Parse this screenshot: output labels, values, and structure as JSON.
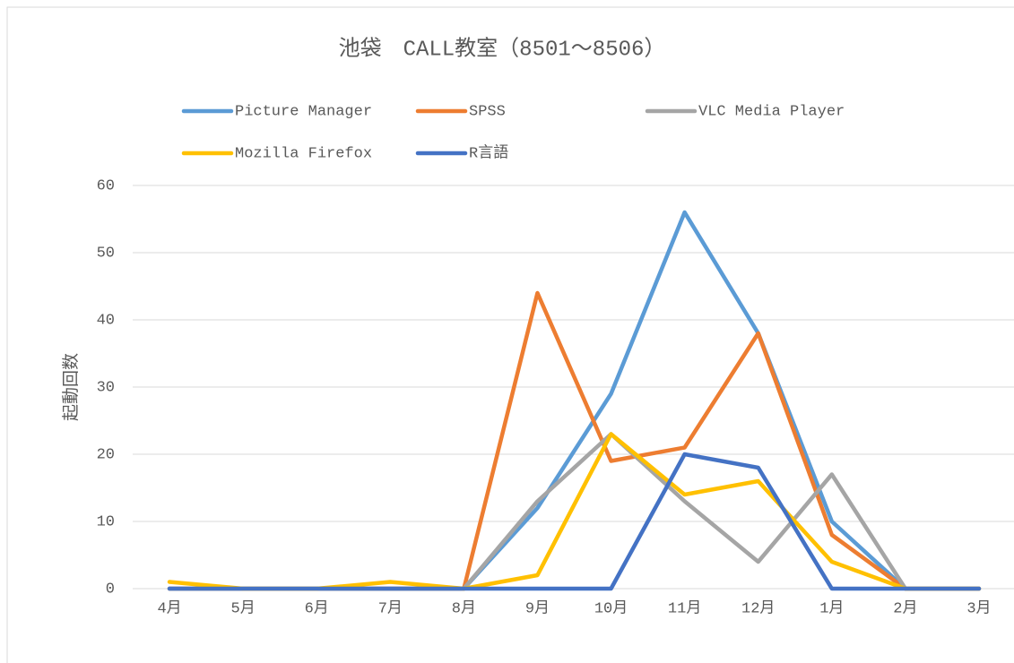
{
  "chart_data": {
    "type": "line",
    "title": "池袋　CALL教室（8501～8506）",
    "ylabel": "起動回数",
    "categories": [
      "4月",
      "5月",
      "6月",
      "7月",
      "8月",
      "9月",
      "10月",
      "11月",
      "12月",
      "1月",
      "2月",
      "3月"
    ],
    "series": [
      {
        "name": "Picture Manager",
        "color": "#5b9bd5",
        "values": [
          0,
          0,
          0,
          0,
          0,
          12,
          29,
          56,
          38,
          10,
          0,
          0
        ]
      },
      {
        "name": "SPSS",
        "color": "#ed7d31",
        "values": [
          0,
          0,
          0,
          0,
          0,
          44,
          19,
          21,
          38,
          8,
          0,
          0
        ]
      },
      {
        "name": "VLC Media Player",
        "color": "#a5a5a5",
        "values": [
          0,
          0,
          0,
          0,
          0,
          13,
          23,
          13,
          4,
          17,
          0,
          0
        ]
      },
      {
        "name": "Mozilla Firefox",
        "color": "#ffc000",
        "values": [
          1,
          0,
          0,
          1,
          0,
          2,
          23,
          14,
          16,
          4,
          0,
          0
        ]
      },
      {
        "name": "R言語",
        "color": "#4472c4",
        "values": [
          0,
          0,
          0,
          0,
          0,
          0,
          0,
          20,
          18,
          0,
          0,
          0
        ]
      }
    ],
    "ylim": [
      0,
      60
    ],
    "yticks": [
      0,
      10,
      20,
      30,
      40,
      50,
      60
    ],
    "grid": true,
    "legend": "top"
  }
}
